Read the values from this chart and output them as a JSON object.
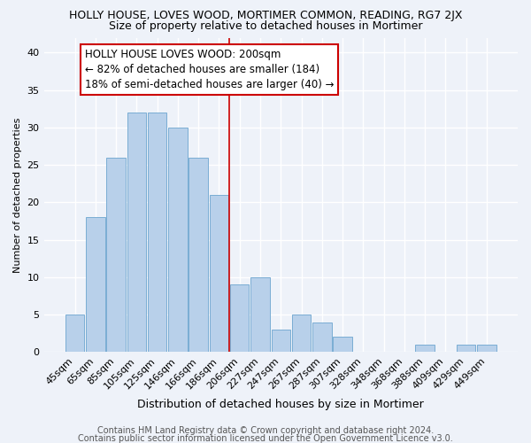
{
  "title": "HOLLY HOUSE, LOVES WOOD, MORTIMER COMMON, READING, RG7 2JX",
  "subtitle": "Size of property relative to detached houses in Mortimer",
  "xlabel": "Distribution of detached houses by size in Mortimer",
  "ylabel": "Number of detached properties",
  "categories": [
    "45sqm",
    "65sqm",
    "85sqm",
    "105sqm",
    "125sqm",
    "146sqm",
    "166sqm",
    "186sqm",
    "206sqm",
    "227sqm",
    "247sqm",
    "267sqm",
    "287sqm",
    "307sqm",
    "328sqm",
    "348sqm",
    "368sqm",
    "388sqm",
    "409sqm",
    "429sqm",
    "449sqm"
  ],
  "values": [
    5,
    18,
    26,
    32,
    32,
    30,
    26,
    21,
    9,
    10,
    3,
    5,
    4,
    2,
    0,
    0,
    0,
    1,
    0,
    1,
    1
  ],
  "bar_color": "#b8d0ea",
  "bar_edge_color": "#7aadd4",
  "reference_line_color": "#cc0000",
  "annotation_box_text": "HOLLY HOUSE LOVES WOOD: 200sqm\n← 82% of detached houses are smaller (184)\n18% of semi-detached houses are larger (40) →",
  "annotation_box_facecolor": "#ffffff",
  "annotation_box_edgecolor": "#cc0000",
  "ylim": [
    0,
    42
  ],
  "yticks": [
    0,
    5,
    10,
    15,
    20,
    25,
    30,
    35,
    40
  ],
  "footer_line1": "Contains HM Land Registry data © Crown copyright and database right 2024.",
  "footer_line2": "Contains public sector information licensed under the Open Government Licence v3.0.",
  "background_color": "#eef2f9",
  "grid_color": "#ffffff",
  "title_fontsize": 9,
  "subtitle_fontsize": 9,
  "xlabel_fontsize": 9,
  "ylabel_fontsize": 8,
  "tick_fontsize": 8,
  "footer_fontsize": 7,
  "annotation_fontsize": 8.5
}
